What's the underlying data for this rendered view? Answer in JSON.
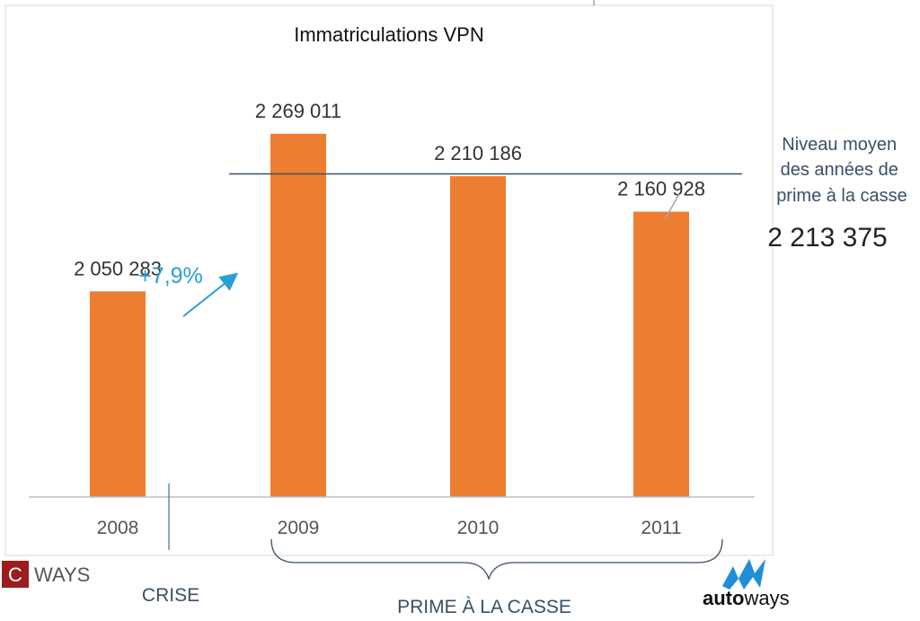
{
  "chart_data": {
    "type": "bar",
    "title": "Immatriculations VPN",
    "categories": [
      "2008",
      "2009",
      "2010",
      "2011"
    ],
    "values": [
      2050283,
      2269011,
      2210186,
      2160928
    ],
    "value_labels": [
      "2 050 283",
      "2 269 011",
      "2 210 186",
      "2 160 928"
    ],
    "ylim": [
      1765000,
      2330000
    ],
    "grid": false,
    "average": {
      "value": 2213375,
      "label": "2 213 375",
      "caption_lines": [
        "Niveau moyen",
        "des années de",
        "prime à la casse"
      ]
    },
    "growth_annotation": "+7,9%",
    "phases": [
      {
        "label": "CRISE"
      },
      {
        "label": "PRIME À LA CASSE"
      }
    ]
  },
  "logos": {
    "cways_initial": "C",
    "cways_name": "WAYS",
    "autoways_name_auto": "auto",
    "autoways_name_ways": "ways"
  },
  "colors": {
    "bar": "#ed7d31",
    "average_line": "#3b5068",
    "growth_arrow": "#2a9fd6",
    "cways_brand": "#9e1b1e",
    "autoways_brand": "#1e8fd6"
  }
}
